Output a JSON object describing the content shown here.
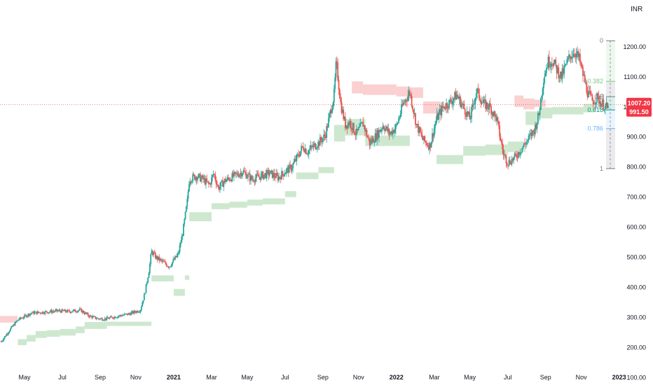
{
  "chart_data": {
    "type": "candlestick",
    "currency": "INR",
    "ylim": [
      100,
      1300
    ],
    "y_ticks": [
      100,
      200,
      300,
      400,
      500,
      600,
      700,
      800,
      900,
      1000,
      1100,
      1200
    ],
    "y_tick_labels": [
      "100.00",
      "200.00",
      "300.00",
      "400.00",
      "500.00",
      "600.00",
      "700.00",
      "800.00",
      "900.00",
      "1000.00",
      "1100.00",
      "1200.00"
    ],
    "x_ticks": [
      {
        "label": "May",
        "x": 2020.33
      },
      {
        "label": "Jul",
        "x": 2020.5
      },
      {
        "label": "Sep",
        "x": 2020.67
      },
      {
        "label": "Nov",
        "x": 2020.83
      },
      {
        "label": "2021",
        "x": 2021.0
      },
      {
        "label": "Mar",
        "x": 2021.17
      },
      {
        "label": "May",
        "x": 2021.33
      },
      {
        "label": "Jul",
        "x": 2021.5
      },
      {
        "label": "Sep",
        "x": 2021.67
      },
      {
        "label": "Nov",
        "x": 2021.83
      },
      {
        "label": "2022",
        "x": 2022.0
      },
      {
        "label": "Mar",
        "x": 2022.17
      },
      {
        "label": "May",
        "x": 2022.33
      },
      {
        "label": "Jul",
        "x": 2022.5
      },
      {
        "label": "Sep",
        "x": 2022.67
      },
      {
        "label": "Nov",
        "x": 2022.83
      },
      {
        "label": "2023",
        "x": 2023.0
      }
    ],
    "xlim": [
      2020.22,
      2023.02
    ],
    "price_path": [
      [
        2020.22,
        215
      ],
      [
        2020.27,
        265
      ],
      [
        2020.3,
        292
      ],
      [
        2020.36,
        315
      ],
      [
        2020.42,
        318
      ],
      [
        2020.48,
        322
      ],
      [
        2020.53,
        320
      ],
      [
        2020.58,
        325
      ],
      [
        2020.62,
        305
      ],
      [
        2020.66,
        296
      ],
      [
        2020.7,
        296
      ],
      [
        2020.75,
        305
      ],
      [
        2020.8,
        312
      ],
      [
        2020.85,
        325
      ],
      [
        2020.87,
        380
      ],
      [
        2020.89,
        460
      ],
      [
        2020.9,
        520
      ],
      [
        2020.92,
        500
      ],
      [
        2020.95,
        485
      ],
      [
        2020.98,
        470
      ],
      [
        2021.0,
        490
      ],
      [
        2021.02,
        510
      ],
      [
        2021.04,
        580
      ],
      [
        2021.06,
        680
      ],
      [
        2021.07,
        760
      ],
      [
        2021.1,
        770
      ],
      [
        2021.13,
        760
      ],
      [
        2021.16,
        740
      ],
      [
        2021.18,
        780
      ],
      [
        2021.2,
        730
      ],
      [
        2021.23,
        755
      ],
      [
        2021.27,
        770
      ],
      [
        2021.31,
        785
      ],
      [
        2021.35,
        760
      ],
      [
        2021.39,
        770
      ],
      [
        2021.43,
        780
      ],
      [
        2021.47,
        765
      ],
      [
        2021.5,
        785
      ],
      [
        2021.53,
        800
      ],
      [
        2021.56,
        840
      ],
      [
        2021.58,
        870
      ],
      [
        2021.6,
        850
      ],
      [
        2021.62,
        865
      ],
      [
        2021.65,
        880
      ],
      [
        2021.68,
        905
      ],
      [
        2021.7,
        970
      ],
      [
        2021.72,
        1040
      ],
      [
        2021.73,
        1150
      ],
      [
        2021.75,
        1010
      ],
      [
        2021.77,
        940
      ],
      [
        2021.79,
        950
      ],
      [
        2021.82,
        910
      ],
      [
        2021.85,
        945
      ],
      [
        2021.88,
        880
      ],
      [
        2021.91,
        905
      ],
      [
        2021.94,
        940
      ],
      [
        2021.97,
        910
      ],
      [
        2022.0,
        935
      ],
      [
        2022.03,
        1010
      ],
      [
        2022.06,
        1050
      ],
      [
        2022.09,
        940
      ],
      [
        2022.12,
        890
      ],
      [
        2022.15,
        870
      ],
      [
        2022.18,
        960
      ],
      [
        2022.21,
        1000
      ],
      [
        2022.24,
        1015
      ],
      [
        2022.27,
        1040
      ],
      [
        2022.3,
        1000
      ],
      [
        2022.33,
        960
      ],
      [
        2022.36,
        1055
      ],
      [
        2022.39,
        1010
      ],
      [
        2022.42,
        1000
      ],
      [
        2022.45,
        960
      ],
      [
        2022.48,
        845
      ],
      [
        2022.5,
        815
      ],
      [
        2022.53,
        830
      ],
      [
        2022.56,
        860
      ],
      [
        2022.59,
        890
      ],
      [
        2022.62,
        925
      ],
      [
        2022.64,
        975
      ],
      [
        2022.66,
        1095
      ],
      [
        2022.68,
        1150
      ],
      [
        2022.7,
        1155
      ],
      [
        2022.72,
        1125
      ],
      [
        2022.74,
        1100
      ],
      [
        2022.76,
        1135
      ],
      [
        2022.78,
        1170
      ],
      [
        2022.8,
        1185
      ],
      [
        2022.82,
        1160
      ],
      [
        2022.84,
        1100
      ],
      [
        2022.86,
        1045
      ],
      [
        2022.88,
        1020
      ],
      [
        2022.9,
        1030
      ],
      [
        2022.92,
        1015
      ],
      [
        2022.94,
        1000
      ],
      [
        2022.95,
        992
      ]
    ],
    "up_color": "#26a69a",
    "down_color": "#ef5350",
    "current_price": 1007.2,
    "current_price_label": "1007.20",
    "second_price_label": "991.50",
    "price_label_color": "#f23645",
    "support_bands": [
      [
        2020.3,
        208,
        228
      ],
      [
        2020.34,
        220,
        242
      ],
      [
        2020.38,
        232,
        255
      ],
      [
        2020.43,
        236,
        258
      ],
      [
        2020.49,
        240,
        262
      ],
      [
        2020.56,
        248,
        270
      ],
      [
        2020.6,
        262,
        285
      ],
      [
        2020.7,
        272,
        286
      ],
      [
        2020.9,
        420,
        440
      ],
      [
        2021.0,
        372,
        395
      ],
      [
        2021.05,
        425,
        440
      ],
      [
        2021.07,
        620,
        650
      ],
      [
        2021.17,
        660,
        680
      ],
      [
        2021.25,
        665,
        685
      ],
      [
        2021.33,
        672,
        692
      ],
      [
        2021.4,
        676,
        696
      ],
      [
        2021.5,
        700,
        720
      ],
      [
        2021.55,
        760,
        782
      ],
      [
        2021.65,
        780,
        800
      ],
      [
        2021.72,
        885,
        940
      ],
      [
        2021.77,
        905,
        960
      ],
      [
        2021.86,
        870,
        905
      ],
      [
        2022.18,
        810,
        840
      ],
      [
        2022.3,
        838,
        870
      ],
      [
        2022.4,
        840,
        875
      ],
      [
        2022.5,
        850,
        885
      ],
      [
        2022.58,
        940,
        985
      ],
      [
        2022.64,
        962,
        998
      ],
      [
        2022.7,
        975,
        1000
      ],
      [
        2022.84,
        982,
        1010
      ]
    ],
    "resistance_bands": [
      [
        2020.22,
        283,
        305
      ],
      [
        2020.3,
        286,
        308
      ],
      [
        2021.8,
        1045,
        1085
      ],
      [
        2021.85,
        1040,
        1075
      ],
      [
        2022.0,
        1035,
        1068
      ],
      [
        2022.06,
        1030,
        1065
      ],
      [
        2022.12,
        978,
        1018
      ],
      [
        2022.2,
        990,
        1020
      ],
      [
        2022.53,
        1000,
        1038
      ],
      [
        2022.57,
        992,
        1028
      ],
      [
        2022.62,
        1000,
        1024
      ]
    ],
    "fib_levels": [
      {
        "label": "0",
        "value": 1220,
        "color": "#787b86"
      },
      {
        "label": "0.382",
        "value": 1085,
        "color": "#81c784"
      },
      {
        "label": "0.5",
        "value": 1034,
        "color": "#787b86"
      },
      {
        "label": "0.618",
        "value": 990,
        "color": "#089981"
      },
      {
        "label": "0.786",
        "value": 928,
        "color": "#64b5f6"
      },
      {
        "label": "1",
        "value": 795,
        "color": "#787b86"
      }
    ]
  }
}
